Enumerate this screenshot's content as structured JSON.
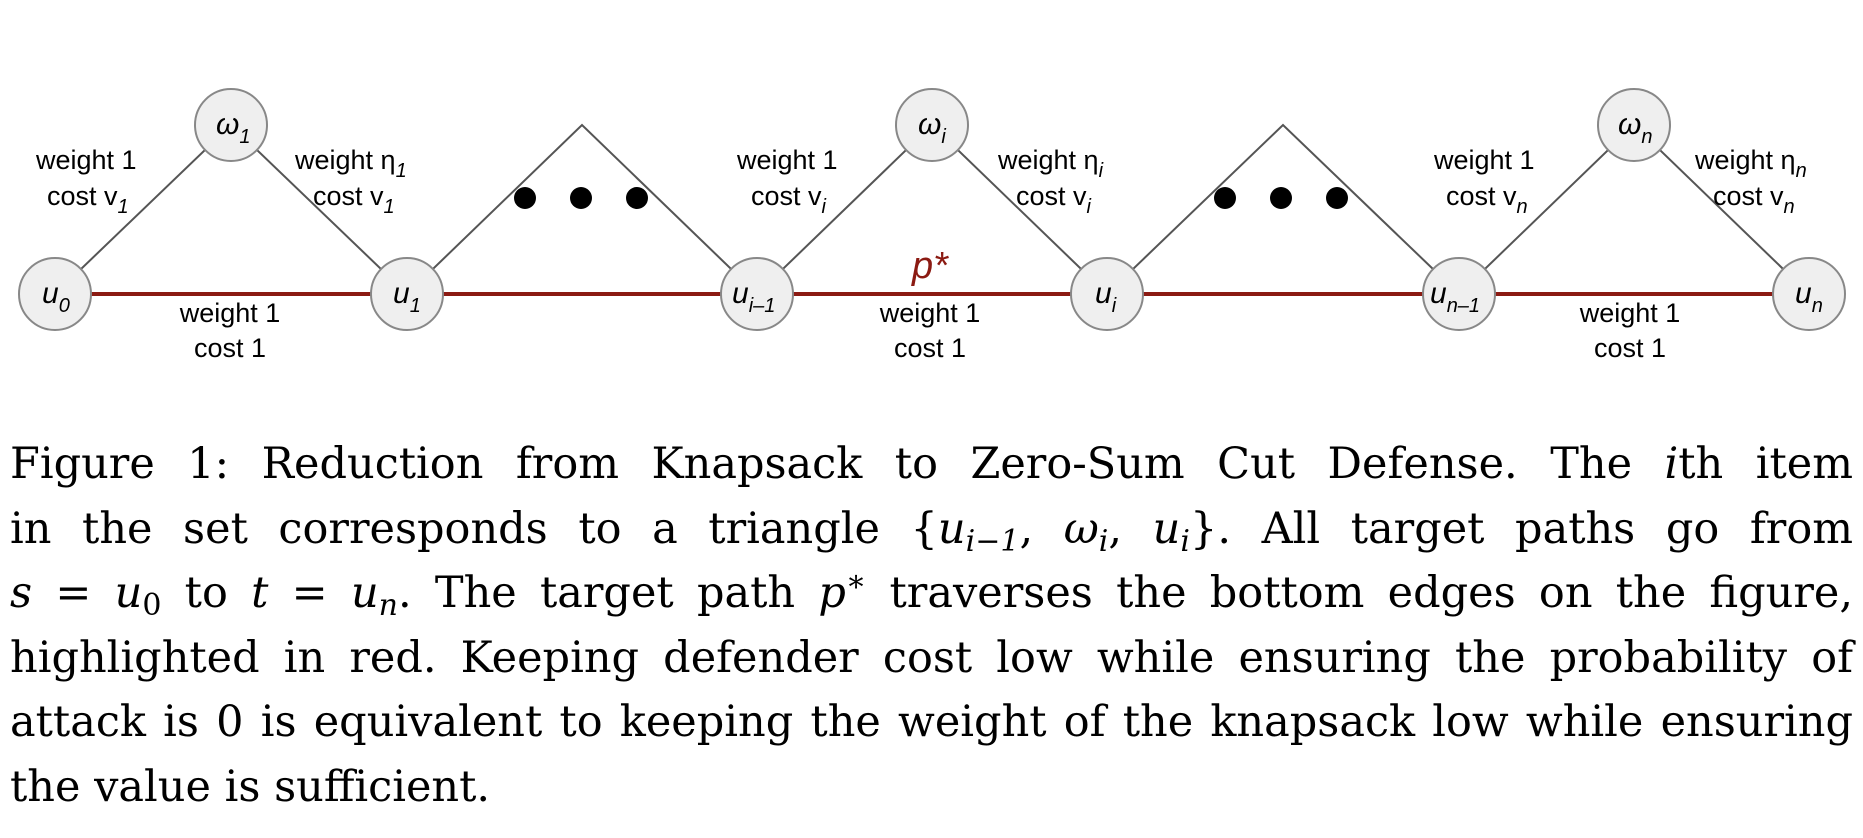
{
  "figure": {
    "edge_labels": {
      "weight_1": "weight 1",
      "cost_1": "cost 1",
      "weight_eta": "weight η",
      "cost_v": "cost v"
    },
    "path_label": "p*",
    "ellipsis": "• • •",
    "bottom_nodes": [
      {
        "base": "u",
        "sub": "0"
      },
      {
        "base": "u",
        "sub": "1"
      },
      {
        "base": "u",
        "sub": "i–1"
      },
      {
        "base": "u",
        "sub": "i"
      },
      {
        "base": "u",
        "sub": "n–1"
      },
      {
        "base": "u",
        "sub": "n"
      }
    ],
    "top_nodes": [
      {
        "base": "ω",
        "sub": "1"
      },
      {
        "base": "ω",
        "sub": "i"
      },
      {
        "base": "ω",
        "sub": "n"
      }
    ],
    "triangles": [
      {
        "left_weight": "weight 1",
        "left_cost": "cost v",
        "left_cost_sub": "1",
        "right_weight": "weight η",
        "right_weight_sub": "1",
        "right_cost": "cost v",
        "right_cost_sub": "1",
        "bottom_weight": "weight 1",
        "bottom_cost": "cost 1"
      },
      {
        "left_weight": "weight 1",
        "left_cost": "cost v",
        "left_cost_sub": "i",
        "right_weight": "weight η",
        "right_weight_sub": "i",
        "right_cost": "cost v",
        "right_cost_sub": "i",
        "bottom_weight": "weight 1",
        "bottom_cost": "cost 1"
      },
      {
        "left_weight": "weight 1",
        "left_cost": "cost v",
        "left_cost_sub": "n",
        "right_weight": "weight η",
        "right_weight_sub": "n",
        "right_cost": "cost v",
        "right_cost_sub": "n",
        "bottom_weight": "weight 1",
        "bottom_cost": "cost 1"
      }
    ],
    "colors": {
      "path_red": "#8b1a12",
      "node_fill": "#efefef",
      "node_stroke": "#888888",
      "edge_gray": "#555555"
    }
  },
  "caption": {
    "label": "Figure 1:",
    "l1a": " Reduction from Knapsack to Zero-Sum Cut Defense.  The ",
    "l1_i": "i",
    "l1b": "th item",
    "l2a": "in the set corresponds to a triangle {",
    "l2_u": "u",
    "l2_sub1": "i−1",
    "l2_sep1": ", ",
    "l2_w": "ω",
    "l2_sub2": "i",
    "l2_sep2": ", ",
    "l2_u2": "u",
    "l2_sub3": "i",
    "l2b": "}.  All target paths go from",
    "l3_s": "s",
    "l3_eq1": " = ",
    "l3_u0": "u",
    "l3_u0sub": "0",
    "l3_to": " to ",
    "l3_t": "t",
    "l3_eq2": " = ",
    "l3_un": "u",
    "l3_unsub": "n",
    "l3b": ". The target path ",
    "l3_p": "p",
    "l3_star": "∗",
    "l3c": " traverses the bottom edges on the figure,",
    "l4": "highlighted in red. Keeping defender cost low while ensuring the probability of",
    "l5": "attack is 0 is equivalent to keeping the weight of the knapsack low while ensuring",
    "l6": "the value is sufficient."
  }
}
